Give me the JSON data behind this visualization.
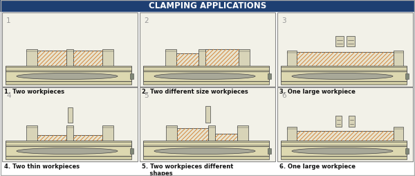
{
  "title": "CLAMPING APPLICATIONS",
  "title_bg": "#1e3f72",
  "title_text_color": "#ffffff",
  "panel_bg": "#f2f1e8",
  "outer_bg": "#ffffff",
  "border_color": "#aaaaaa",
  "captions": [
    "1. Two workpieces",
    "2. Two different size workpieces",
    "3. One large workpiece",
    "4. Two thin workpieces",
    "5. Two workpieces different\n    shapes",
    "6. One large workpiece"
  ],
  "panel_nums": [
    "1",
    "2",
    "3",
    "4",
    "5",
    "6"
  ],
  "hatch_color": "#d4863a",
  "body_color": "#ddd8b0",
  "body_color2": "#ccc8a0",
  "oval_color": "#a8a898",
  "dark_border": "#444444",
  "wp_fill": "#e8e4d0",
  "jaw_color": "#d8d4b8",
  "base_dark": "#b8b4a0",
  "screw_color": "#808878"
}
